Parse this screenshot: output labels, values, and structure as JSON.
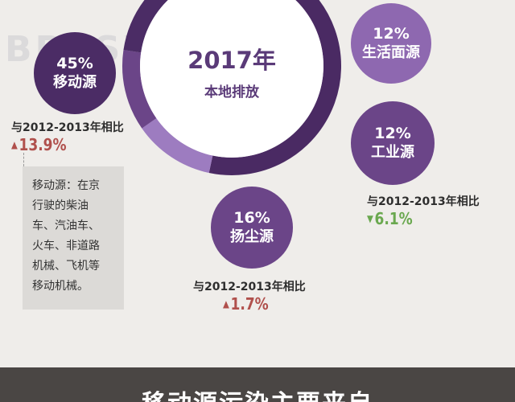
{
  "watermark": "BPRSX",
  "center": {
    "title": "2017年",
    "subtitle": "本地排放"
  },
  "chart_data": {
    "type": "pie",
    "title": "2017年 本地排放",
    "unit": "%",
    "series": [
      {
        "name": "移动源",
        "value": 45,
        "label": "45%",
        "change": "13.9%",
        "direction": "up",
        "comparison": "与2012-2013年相比"
      },
      {
        "name": "生活面源",
        "value": 12,
        "label": "12%"
      },
      {
        "name": "工业源",
        "value": 12,
        "label": "12%",
        "change": "6.1%",
        "direction": "down",
        "comparison": "与2012-2013年相比"
      },
      {
        "name": "扬尘源",
        "value": 16,
        "label": "16%",
        "change": "1.7%",
        "direction": "up",
        "comparison": "与2012-2013年相比"
      }
    ]
  },
  "arrows": {
    "up": "▲",
    "down": "▼"
  },
  "colors": {
    "ring_main": "#4a2a63",
    "ring_light": "#9d7cc0",
    "bubble_dark": "#4b2c65",
    "bubble_mid": "#6b4588",
    "bubble_light": "#8e68b0",
    "up": "#b0504c",
    "down": "#6aa84f"
  },
  "note": {
    "lines": [
      "移动源：在京",
      "行驶的柴油",
      "车、汽油车、",
      "火车、非道路",
      "机械、飞机等",
      "移动机械。"
    ]
  },
  "footer": {
    "title": "移动源污染主要来自"
  }
}
